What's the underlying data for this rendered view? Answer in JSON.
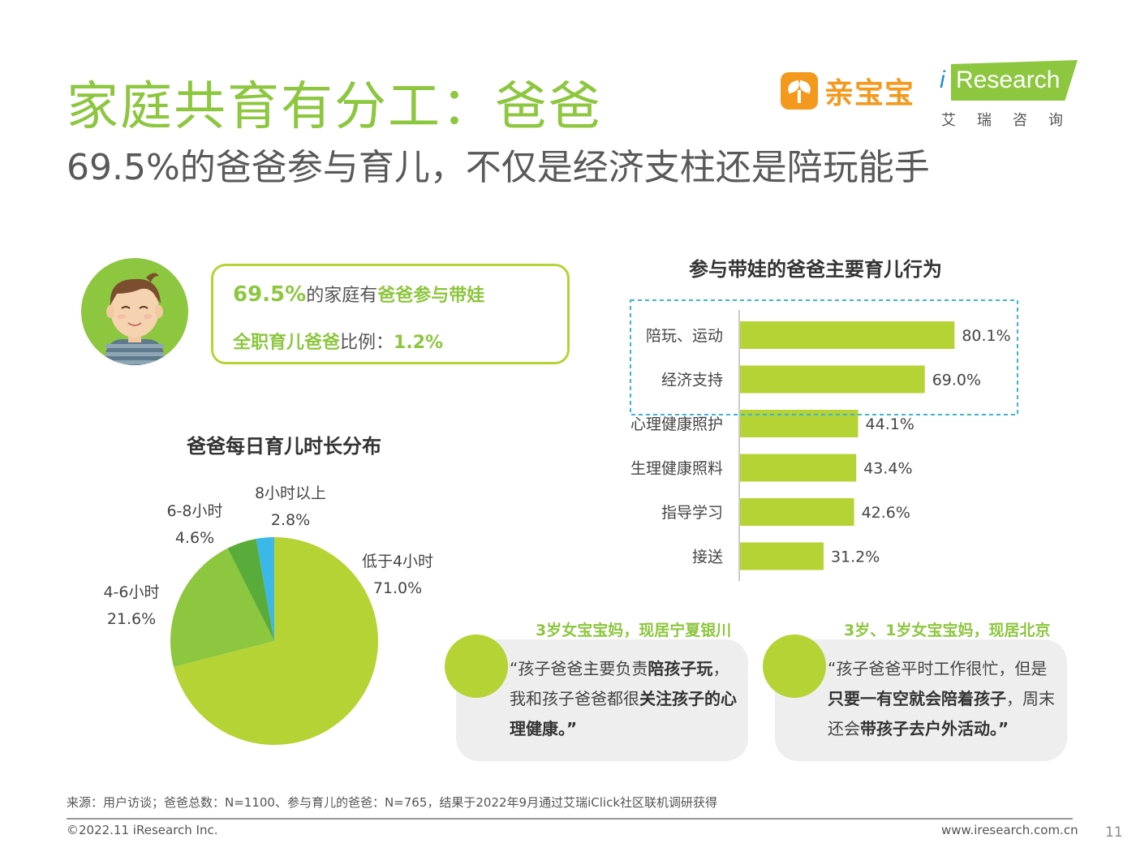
{
  "header": {
    "title": "家庭共育有分工：爸爸",
    "subtitle": "69.5%的爸爸参与育儿，不仅是经济支柱还是陪玩能手"
  },
  "brands": {
    "qinbaobao": "亲宝宝",
    "iresearch_i": "i",
    "iresearch": "Research",
    "iresearch_cn": "艾瑞咨询"
  },
  "info": {
    "pct": "69.5%",
    "mid1": "的家庭有",
    "hl1": "爸爸参与带娃",
    "hl2": "全职育儿爸爸",
    "mid2": "比例：",
    "pct2": "1.2%"
  },
  "colors": {
    "accent": "#8dc63f",
    "bar": "#b5d334",
    "pie": [
      "#b5d334",
      "#8dc63f",
      "#5aac3a",
      "#3cb8e8"
    ],
    "highlight_border": "#3cb4d8"
  },
  "chart_data": [
    {
      "type": "bar",
      "orientation": "horizontal",
      "title": "参与带娃的爸爸主要育儿行为",
      "categories": [
        "陪玩、运动",
        "经济支持",
        "心理健康照护",
        "生理健康照料",
        "指导学习",
        "接送"
      ],
      "values": [
        80.1,
        69.0,
        44.1,
        43.4,
        42.6,
        31.2
      ],
      "labels": [
        "80.1%",
        "69.0%",
        "44.1%",
        "43.4%",
        "42.6%",
        "31.2%"
      ],
      "highlighted": [
        "陪玩、运动",
        "经济支持"
      ],
      "xlim": [
        0,
        100
      ]
    },
    {
      "type": "pie",
      "title": "爸爸每日育儿时长分布",
      "categories": [
        "低于4小时",
        "4-6小时",
        "6-8小时",
        "8小时以上"
      ],
      "values": [
        71.0,
        21.6,
        4.6,
        2.8
      ],
      "labels": [
        "71.0%",
        "21.6%",
        "4.6%",
        "2.8%"
      ]
    }
  ],
  "quotes": [
    {
      "head": "3岁女宝宝妈，现居宁夏银川",
      "parts": [
        {
          "t": "“孩子爸爸主要负责",
          "b": false
        },
        {
          "t": "陪孩子玩",
          "b": true
        },
        {
          "t": "，我和孩子爸爸都很",
          "b": false
        },
        {
          "t": "关注孩子的心理健康",
          "b": true
        },
        {
          "t": "。”",
          "b": true
        }
      ]
    },
    {
      "head": "3岁、1岁女宝宝妈，现居北京",
      "parts": [
        {
          "t": "“孩子爸爸平时工作很忙，但是",
          "b": false
        },
        {
          "t": "只要一有空就会陪着孩子",
          "b": true
        },
        {
          "t": "，周末还会",
          "b": false
        },
        {
          "t": "带孩子去户外活动",
          "b": true
        },
        {
          "t": "。”",
          "b": true
        }
      ]
    }
  ],
  "footer": {
    "source": "来源：用户访谈；爸爸总数：N=1100、参与育儿的爸爸：N=765，结果于2022年9月通过艾瑞iClick社区联机调研获得",
    "copyright": "©2022.11 iResearch Inc.",
    "url": "www.iresearch.com.cn",
    "page": "11"
  }
}
